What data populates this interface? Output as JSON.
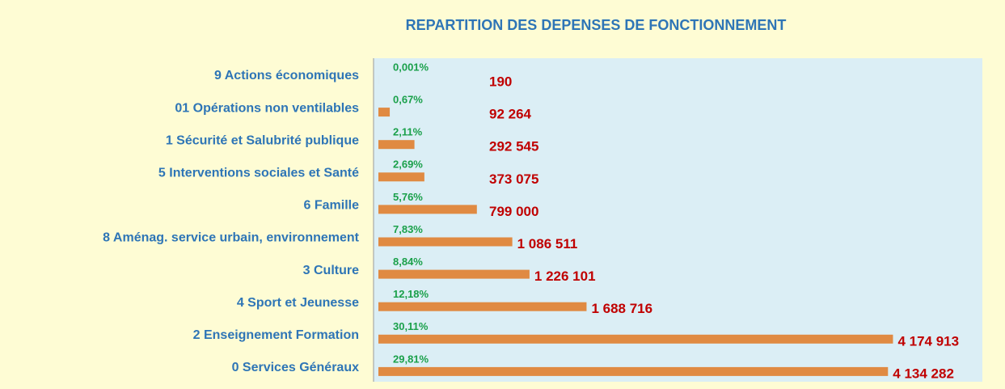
{
  "chart_data": {
    "type": "bar",
    "orientation": "horizontal",
    "title": "REPARTITION DES DEPENSES DE FONCTIONNEMENT",
    "categories": [
      "9 Actions économiques",
      "01 Opérations non ventilables",
      "1 Sécurité et Salubrité publique",
      "5 Interventions sociales et Santé",
      "6 Famille",
      "8 Aménag. service urbain, environnement",
      "3 Culture",
      "4 Sport et Jeunesse",
      "2 Enseignement Formation",
      "0 Services Généraux"
    ],
    "values": [
      190,
      92264,
      292545,
      373075,
      799000,
      1086511,
      1226101,
      1688716,
      4174913,
      4134282
    ],
    "value_labels": [
      "190",
      "92 264",
      "292 545",
      "373 075",
      "799 000",
      "1 086 511",
      "1 226 101",
      "1 688 716",
      "4 174 913",
      "4 134 282"
    ],
    "shares": [
      0.001,
      0.67,
      2.11,
      2.69,
      5.76,
      7.83,
      8.84,
      12.18,
      30.11,
      29.81
    ],
    "share_labels": [
      "0,001%",
      "0,67%",
      "2,11%",
      "2,69%",
      "5,76%",
      "7,83%",
      "8,84%",
      "12,18%",
      "30,11%",
      "29,81%"
    ],
    "color": "#e08a42",
    "xlim": [
      0,
      4900000
    ]
  }
}
